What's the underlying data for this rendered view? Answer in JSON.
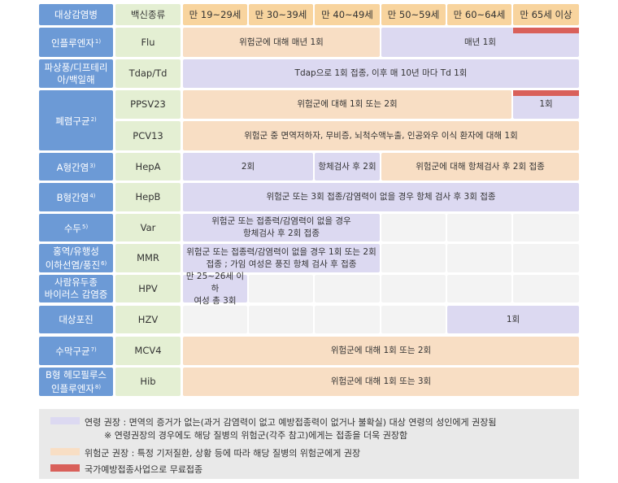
{
  "header": {
    "disease": "대상감염병",
    "vaccine": "백신종류",
    "ages": [
      "만 19~29세",
      "만 30~39세",
      "만 40~49세",
      "만 50~59세",
      "만 60~64세",
      "만 65세 이상"
    ]
  },
  "rows": [
    {
      "disease": [
        "인플루엔자"
      ],
      "note": "1)",
      "vaccine": "Flu",
      "cells": [
        [
          "위험군에 대해 매년 1회"
        ],
        [
          "매년 1회"
        ]
      ]
    },
    {
      "disease": [
        "파상풍/디프테리",
        "아/백일해"
      ],
      "vaccine": "Tdap/Td",
      "cells": [
        [
          "Tdap으로 1회 접종, 이후 매 10년 마다 Td 1회"
        ]
      ]
    },
    {
      "disease": [
        "폐렴구균"
      ],
      "note": "2)",
      "vaccine": "PPSV23",
      "cells": [
        [
          "위험군에 대해 1회 또는 2회"
        ],
        [
          "1회"
        ]
      ]
    },
    {
      "vaccine": "PCV13",
      "cells": [
        [
          "위험군 중 면역저하자, 무비증, 뇌척수액누출, 인공와우 이식 환자에 대해 1회"
        ]
      ]
    },
    {
      "disease": [
        "A형간염"
      ],
      "note": "3)",
      "vaccine": "HepA",
      "cells": [
        [
          "2회"
        ],
        [
          "항체검사 후 2회"
        ],
        [
          "위험군에 대해 항체검사 후 2회 접종"
        ]
      ]
    },
    {
      "disease": [
        "B형간염"
      ],
      "note": "4)",
      "vaccine": "HepB",
      "cells": [
        [
          "위험군 또는 3회 접종/감염력이 없을 경우 항체 검사 후 3회 접종"
        ]
      ]
    },
    {
      "disease": [
        "수두"
      ],
      "note": "5)",
      "vaccine": "Var",
      "cells": [
        [
          "위험군 또는 접종력/감염력이 없을 경우",
          "항체검사 후 2회 접종"
        ]
      ]
    },
    {
      "disease": [
        "홍역/유행성",
        "이하선염/풍진"
      ],
      "note": "6)",
      "vaccine": "MMR",
      "cells": [
        [
          "위험군 또는 접종력/감염력이 없을 경우 1회 또는 2회",
          "접종 ; 가임 여성은 풍진 항체 검사 후 접종"
        ]
      ]
    },
    {
      "disease": [
        "사람유두종",
        "바이러스 감염증"
      ],
      "vaccine": "HPV",
      "cells": [
        [
          "만 25~26세 이하",
          "여성 총 3회"
        ]
      ]
    },
    {
      "disease": [
        "대상포진"
      ],
      "vaccine": "HZV",
      "cells": [
        [
          "1회"
        ]
      ]
    },
    {
      "disease": [
        "수막구균"
      ],
      "note": "7)",
      "vaccine": "MCV4",
      "cells": [
        [
          "위험군에 대해 1회 또는 2회"
        ]
      ]
    },
    {
      "disease": [
        "B형 헤모필루스",
        "인플루엔자"
      ],
      "note": "8)",
      "vaccine": "Hib",
      "cells": [
        [
          "위험군에 대해 1회 또는 3회"
        ]
      ]
    }
  ],
  "legend": [
    {
      "lines": [
        "연령 권장 : 면역의 증거가 없는(과거 감염력이 없고 예방접종력이 없거나 불확실) 대상 연령의 성인에게 권장됨",
        "※ 연령권장의 경우에도 해당 질병의 위험군(각주 참고)에게는 접종을 더욱 권장함"
      ]
    },
    {
      "lines": [
        "위험군 권장 : 특정 기저질환, 상황 등에 따라 해당 질병의 위험군에게 권장"
      ]
    },
    {
      "lines": [
        "국가예방접종사업으로 무료접종"
      ]
    }
  ]
}
